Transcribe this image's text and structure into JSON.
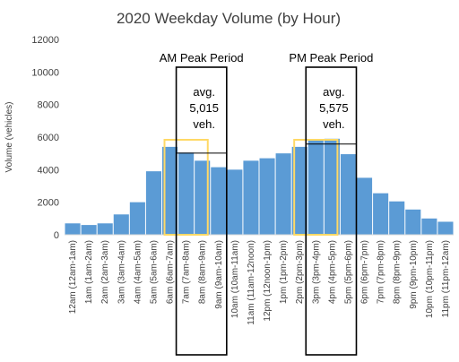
{
  "chart_data": {
    "type": "bar",
    "title": "2020 Weekday Volume (by Hour)",
    "xlabel": "",
    "ylabel": "Volume (vehicles)",
    "ylim": [
      0,
      12000
    ],
    "yticks": [
      "0",
      "2000",
      "4000",
      "6000",
      "8000",
      "10000",
      "12000"
    ],
    "grid": false,
    "legend": "none",
    "bar_color": "#5b9bd5",
    "categories": [
      "12am (12am-1am)",
      "1am (1am-2am)",
      "2am (2am-3am)",
      "3am (3am-4am)",
      "4am (4am-5am)",
      "5am (5am-6am)",
      "6am (6am-7am)",
      "7am (7am-8am)",
      "8am (8am-9am)",
      "9am (9am-10am)",
      "10am (10am-11am)",
      "11am (11am-12noon)",
      "12pm (12noon-1pm)",
      "1pm (1pm-2pm)",
      "2pm (2pm-3pm)",
      "3pm (3pm-4pm)",
      "4pm (4pm-5pm)",
      "5pm (5pm-6pm)",
      "6pm (6pm-7pm)",
      "7pm (7pm-8pm)",
      "8pm (8pm-9pm)",
      "9pm (9pm-10pm)",
      "10pm (10pm-11pm)",
      "11pm (11pm-12am)"
    ],
    "values": [
      700,
      600,
      700,
      1250,
      2000,
      3900,
      5400,
      5050,
      4550,
      4150,
      4000,
      4550,
      4700,
      5000,
      5400,
      5800,
      5900,
      4950,
      3500,
      2550,
      2050,
      1550,
      1000,
      800
    ],
    "annotations": [
      {
        "label": "AM Peak Period",
        "avg_text": [
          "avg.",
          "5,015",
          "veh."
        ],
        "average": 5015,
        "range": [
          7,
          9
        ],
        "highlight_range": [
          6,
          8
        ],
        "highlight_color": "#ffd966"
      },
      {
        "label": "PM Peak Period",
        "avg_text": [
          "avg.",
          "5,575",
          "veh."
        ],
        "average": 5575,
        "range": [
          15,
          17
        ],
        "highlight_range": [
          14,
          16
        ],
        "highlight_color": "#ffd966"
      }
    ]
  }
}
